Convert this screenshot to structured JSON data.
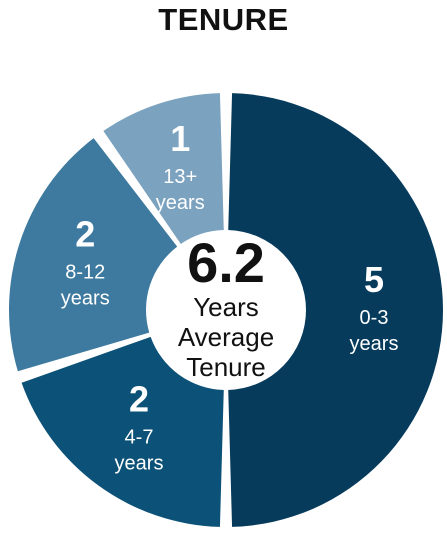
{
  "chart_data": {
    "type": "pie",
    "title": "TENURE",
    "center": {
      "value": "6.2",
      "line1": "Years",
      "line2": "Average",
      "line3": "Tenure"
    },
    "slices": [
      {
        "value": 5,
        "label_value": "5",
        "label_line1": "0-3",
        "label_line2": "years",
        "color": "#073b5c"
      },
      {
        "value": 2,
        "label_value": "2",
        "label_line1": "4-7",
        "label_line2": "years",
        "color": "#0c5177"
      },
      {
        "value": 2,
        "label_value": "2",
        "label_line1": "8-12",
        "label_line2": "years",
        "color": "#3e7a9f"
      },
      {
        "value": 1,
        "label_value": "1",
        "label_line1": "13+",
        "label_line2": "years",
        "color": "#7ba2bf"
      }
    ]
  }
}
